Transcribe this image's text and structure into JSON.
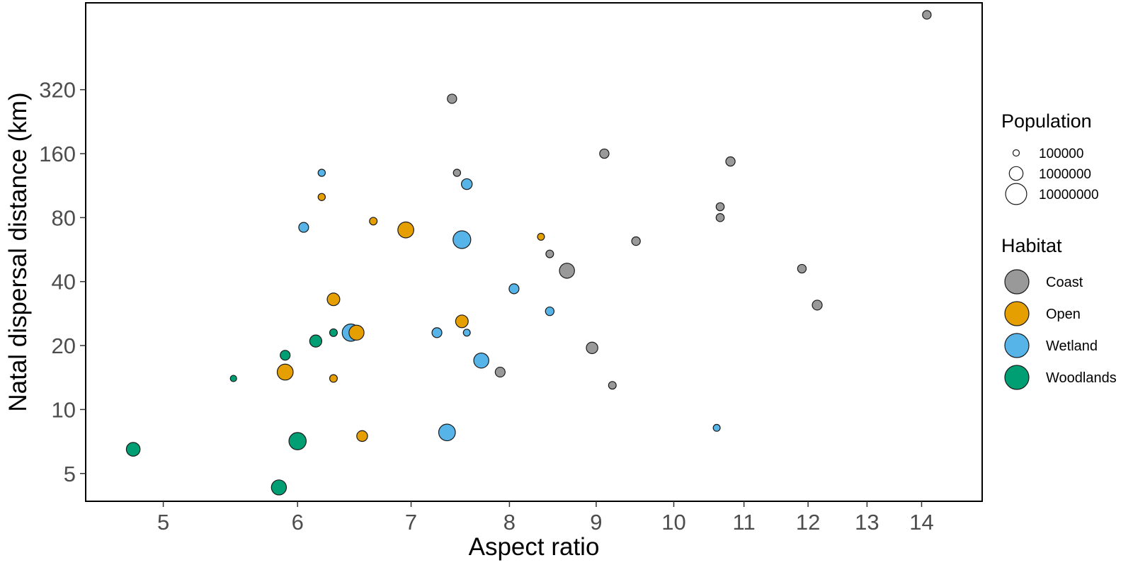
{
  "chart_data": {
    "type": "scatter",
    "title": "",
    "xlabel": "Aspect ratio",
    "ylabel": "Natal dispersal distance (km)",
    "x_scale": "log",
    "y_scale": "log",
    "xlim": [
      4.5,
      15.2
    ],
    "ylim": [
      3.7,
      820
    ],
    "x_ticks": [
      5,
      6,
      7,
      8,
      9,
      10,
      11,
      12,
      13,
      14
    ],
    "x_tick_labels": [
      "5",
      "6",
      "7",
      "8",
      "9",
      "10",
      "11",
      "12",
      "13",
      "14"
    ],
    "y_ticks": [
      5,
      10,
      20,
      40,
      80,
      160,
      320
    ],
    "y_tick_labels": [
      "5",
      "10",
      "20",
      "40",
      "80",
      "160",
      "320"
    ],
    "grid": false,
    "legend_position": "right",
    "size_legend": {
      "title": "Population",
      "entries": [
        {
          "label": "100000",
          "population": 100000
        },
        {
          "label": "1000000",
          "population": 1000000
        },
        {
          "label": "10000000",
          "population": 10000000
        }
      ]
    },
    "color_legend": {
      "title": "Habitat",
      "entries": [
        {
          "label": "Coast",
          "color": "#999999"
        },
        {
          "label": "Open",
          "color": "#E69F00"
        },
        {
          "label": "Wetland",
          "color": "#56B4E9"
        },
        {
          "label": "Woodlands",
          "color": "#009E73"
        }
      ]
    },
    "series": [
      {
        "name": "Coast",
        "color": "#999999",
        "points": [
          {
            "x": 14.1,
            "y": 720,
            "population": 200000
          },
          {
            "x": 7.4,
            "y": 290,
            "population": 250000
          },
          {
            "x": 7.45,
            "y": 130,
            "population": 130000
          },
          {
            "x": 9.1,
            "y": 160,
            "population": 250000
          },
          {
            "x": 10.8,
            "y": 147,
            "population": 250000
          },
          {
            "x": 10.65,
            "y": 90,
            "population": 170000
          },
          {
            "x": 10.65,
            "y": 80,
            "population": 170000
          },
          {
            "x": 9.5,
            "y": 62,
            "population": 200000
          },
          {
            "x": 8.45,
            "y": 54,
            "population": 150000
          },
          {
            "x": 8.65,
            "y": 45,
            "population": 1500000
          },
          {
            "x": 11.9,
            "y": 46,
            "population": 200000
          },
          {
            "x": 12.15,
            "y": 31,
            "population": 300000
          },
          {
            "x": 8.95,
            "y": 19.5,
            "population": 500000
          },
          {
            "x": 7.9,
            "y": 15,
            "population": 300000
          },
          {
            "x": 9.2,
            "y": 13,
            "population": 150000
          }
        ]
      },
      {
        "name": "Open",
        "color": "#E69F00",
        "points": [
          {
            "x": 6.2,
            "y": 100,
            "population": 130000
          },
          {
            "x": 6.65,
            "y": 77,
            "population": 150000
          },
          {
            "x": 6.95,
            "y": 70,
            "population": 2000000
          },
          {
            "x": 8.35,
            "y": 65,
            "population": 120000
          },
          {
            "x": 6.3,
            "y": 33,
            "population": 700000
          },
          {
            "x": 7.5,
            "y": 26,
            "population": 700000
          },
          {
            "x": 6.5,
            "y": 23,
            "population": 1500000
          },
          {
            "x": 5.9,
            "y": 15,
            "population": 2000000
          },
          {
            "x": 6.3,
            "y": 14,
            "population": 150000
          },
          {
            "x": 6.55,
            "y": 7.5,
            "population": 400000
          }
        ]
      },
      {
        "name": "Wetland",
        "color": "#56B4E9",
        "points": [
          {
            "x": 6.2,
            "y": 130,
            "population": 130000
          },
          {
            "x": 7.55,
            "y": 115,
            "population": 400000
          },
          {
            "x": 6.05,
            "y": 72,
            "population": 300000
          },
          {
            "x": 7.5,
            "y": 63,
            "population": 3500000
          },
          {
            "x": 8.05,
            "y": 37,
            "population": 300000
          },
          {
            "x": 8.45,
            "y": 29,
            "population": 200000
          },
          {
            "x": 6.45,
            "y": 23,
            "population": 3000000
          },
          {
            "x": 7.25,
            "y": 23,
            "population": 300000
          },
          {
            "x": 7.55,
            "y": 23,
            "population": 120000
          },
          {
            "x": 7.7,
            "y": 17,
            "population": 1500000
          },
          {
            "x": 7.35,
            "y": 7.8,
            "population": 2500000
          },
          {
            "x": 10.6,
            "y": 8.2,
            "population": 120000
          }
        ]
      },
      {
        "name": "Woodlands",
        "color": "#009E73",
        "points": [
          {
            "x": 6.3,
            "y": 23,
            "population": 150000
          },
          {
            "x": 6.15,
            "y": 21,
            "population": 600000
          },
          {
            "x": 5.9,
            "y": 18,
            "population": 300000
          },
          {
            "x": 5.5,
            "y": 14,
            "population": 100000
          },
          {
            "x": 4.8,
            "y": 6.5,
            "population": 1000000
          },
          {
            "x": 6.0,
            "y": 7.1,
            "population": 3000000
          },
          {
            "x": 5.85,
            "y": 4.3,
            "population": 1500000
          }
        ]
      }
    ]
  }
}
